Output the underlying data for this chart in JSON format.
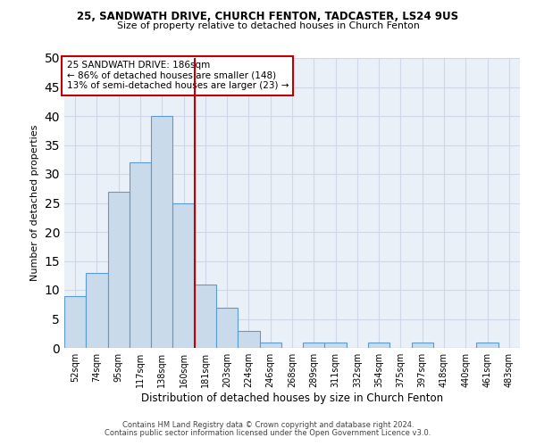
{
  "title1": "25, SANDWATH DRIVE, CHURCH FENTON, TADCASTER, LS24 9US",
  "title2": "Size of property relative to detached houses in Church Fenton",
  "xlabel": "Distribution of detached houses by size in Church Fenton",
  "ylabel": "Number of detached properties",
  "footnote1": "Contains HM Land Registry data © Crown copyright and database right 2024.",
  "footnote2": "Contains public sector information licensed under the Open Government Licence v3.0.",
  "annotation_line1": "25 SANDWATH DRIVE: 186sqm",
  "annotation_line2": "← 86% of detached houses are smaller (148)",
  "annotation_line3": "13% of semi-detached houses are larger (23) →",
  "bar_labels": [
    "52sqm",
    "74sqm",
    "95sqm",
    "117sqm",
    "138sqm",
    "160sqm",
    "181sqm",
    "203sqm",
    "224sqm",
    "246sqm",
    "268sqm",
    "289sqm",
    "311sqm",
    "332sqm",
    "354sqm",
    "375sqm",
    "397sqm",
    "418sqm",
    "440sqm",
    "461sqm",
    "483sqm"
  ],
  "bar_values": [
    9,
    13,
    27,
    32,
    40,
    25,
    11,
    7,
    3,
    1,
    0,
    1,
    1,
    0,
    1,
    0,
    1,
    0,
    0,
    1,
    0
  ],
  "bar_color": "#c9daea",
  "bar_edge_color": "#5b9bd5",
  "vline_color": "#c00000",
  "annotation_box_color": "#c00000",
  "ylim": [
    0,
    50
  ],
  "yticks": [
    0,
    5,
    10,
    15,
    20,
    25,
    30,
    35,
    40,
    45,
    50
  ],
  "grid_color": "#d0d8e8",
  "bg_color": "#eaf0f8"
}
